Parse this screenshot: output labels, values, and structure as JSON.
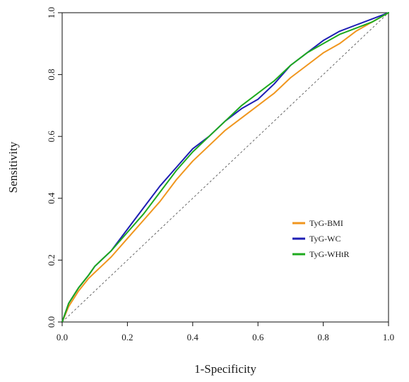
{
  "chart_data": {
    "type": "line",
    "title": "",
    "xlabel": "1-Specificity",
    "ylabel": "Sensitivity",
    "xlim": [
      0,
      1
    ],
    "ylim": [
      0,
      1
    ],
    "xticks": [
      "0.0",
      "0.2",
      "0.4",
      "0.6",
      "0.8",
      "1.0"
    ],
    "yticks": [
      "0.0",
      "0.2",
      "0.4",
      "0.6",
      "0.8",
      "1.0"
    ],
    "grid": false,
    "legend_position": "lower-right",
    "reference_line": {
      "style": "dashed",
      "color": "#444444",
      "points": [
        [
          0,
          0
        ],
        [
          1,
          1
        ]
      ]
    },
    "series": [
      {
        "name": "TyG-BMI",
        "color": "#F0961E",
        "x": [
          0,
          0.02,
          0.05,
          0.08,
          0.1,
          0.12,
          0.15,
          0.2,
          0.25,
          0.3,
          0.35,
          0.4,
          0.45,
          0.5,
          0.55,
          0.6,
          0.65,
          0.7,
          0.75,
          0.8,
          0.85,
          0.9,
          0.95,
          1.0
        ],
        "y": [
          0,
          0.05,
          0.1,
          0.14,
          0.16,
          0.18,
          0.21,
          0.27,
          0.33,
          0.39,
          0.46,
          0.52,
          0.57,
          0.62,
          0.66,
          0.7,
          0.74,
          0.79,
          0.83,
          0.87,
          0.9,
          0.94,
          0.97,
          1.0
        ]
      },
      {
        "name": "TyG-WC",
        "color": "#1E1EB4",
        "x": [
          0,
          0.02,
          0.05,
          0.08,
          0.1,
          0.12,
          0.15,
          0.2,
          0.25,
          0.3,
          0.35,
          0.4,
          0.45,
          0.5,
          0.55,
          0.6,
          0.65,
          0.7,
          0.75,
          0.8,
          0.85,
          0.9,
          0.95,
          1.0
        ],
        "y": [
          0,
          0.06,
          0.11,
          0.15,
          0.18,
          0.2,
          0.23,
          0.3,
          0.37,
          0.44,
          0.5,
          0.56,
          0.6,
          0.65,
          0.69,
          0.72,
          0.77,
          0.83,
          0.87,
          0.91,
          0.94,
          0.96,
          0.98,
          1.0
        ]
      },
      {
        "name": "TyG-WHtR",
        "color": "#1EAA1E",
        "x": [
          0,
          0.02,
          0.05,
          0.08,
          0.1,
          0.12,
          0.15,
          0.2,
          0.25,
          0.3,
          0.35,
          0.4,
          0.45,
          0.5,
          0.55,
          0.6,
          0.65,
          0.7,
          0.75,
          0.8,
          0.85,
          0.9,
          0.95,
          1.0
        ],
        "y": [
          0,
          0.06,
          0.11,
          0.15,
          0.18,
          0.2,
          0.23,
          0.29,
          0.35,
          0.42,
          0.49,
          0.55,
          0.6,
          0.65,
          0.7,
          0.74,
          0.78,
          0.83,
          0.87,
          0.9,
          0.93,
          0.95,
          0.97,
          1.0
        ]
      }
    ]
  }
}
